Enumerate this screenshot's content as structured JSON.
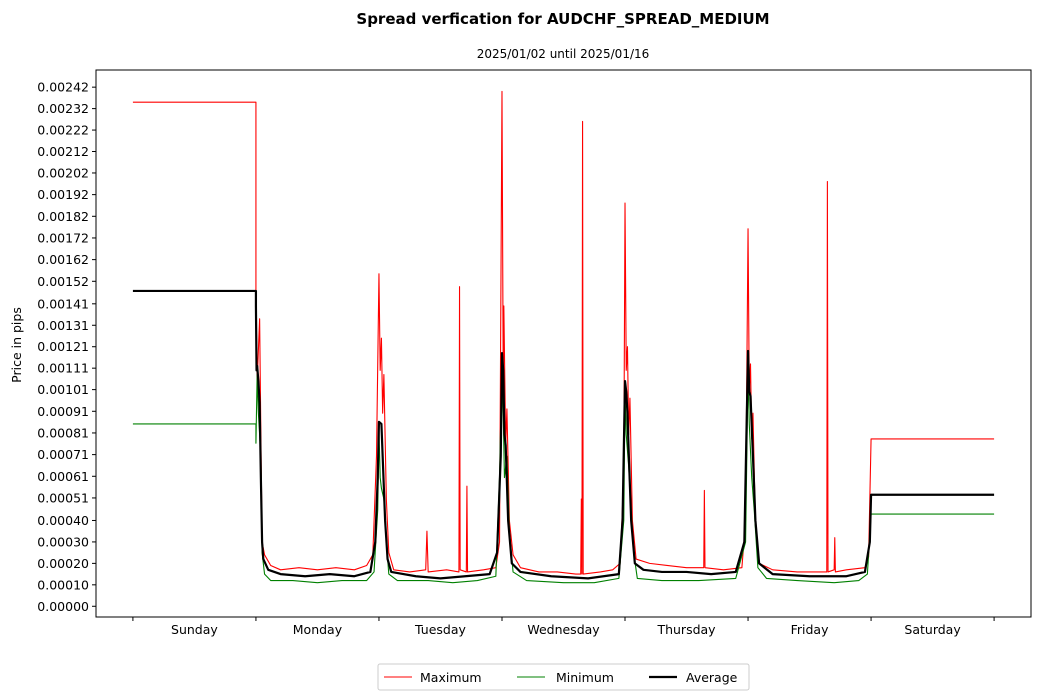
{
  "chart_data": {
    "type": "line",
    "title": "Spread verfication for AUDCHF_SPREAD_MEDIUM",
    "subtitle": "2025/01/02 until 2025/01/16",
    "xlabel": "",
    "ylabel": "Price in pips",
    "ylim": [
      -5e-05,
      0.0025
    ],
    "xlim": [
      -0.3,
      7.3
    ],
    "yticks": [
      "0.00000",
      "0.00010",
      "0.00020",
      "0.00030",
      "0.00040",
      "0.00051",
      "0.00061",
      "0.00071",
      "0.00081",
      "0.00091",
      "0.00101",
      "0.00111",
      "0.00121",
      "0.00131",
      "0.00141",
      "0.00152",
      "0.00162",
      "0.00172",
      "0.00182",
      "0.00192",
      "0.00202",
      "0.00212",
      "0.00222",
      "0.00232",
      "0.00242"
    ],
    "ytick_values": [
      0.0,
      0.0001,
      0.0002,
      0.0003,
      0.0004,
      0.000505,
      0.000606,
      0.000707,
      0.000808,
      0.000909,
      0.00101,
      0.00111,
      0.00121,
      0.00131,
      0.00141,
      0.001515,
      0.001616,
      0.001717,
      0.001818,
      0.001919,
      0.00202,
      0.00212,
      0.00222,
      0.00232,
      0.00242
    ],
    "categories": [
      "Sunday",
      "Monday",
      "Tuesday",
      "Wednesday",
      "Thursday",
      "Friday",
      "Saturday"
    ],
    "legend_position": "bottom-center",
    "grid": false,
    "series": [
      {
        "name": "Maximum",
        "color": "#ff0000",
        "stroke": 1.1,
        "points": [
          [
            0,
            0.00235
          ],
          [
            1.0,
            0.00235
          ],
          [
            1.0,
            0.00145
          ],
          [
            1.01,
            0.00105
          ],
          [
            1.03,
            0.00134
          ],
          [
            1.04,
            0.0008
          ],
          [
            1.05,
            0.0003
          ],
          [
            1.07,
            0.00024
          ],
          [
            1.12,
            0.00019
          ],
          [
            1.2,
            0.00017
          ],
          [
            1.35,
            0.00018
          ],
          [
            1.5,
            0.00017
          ],
          [
            1.65,
            0.00018
          ],
          [
            1.8,
            0.00017
          ],
          [
            1.9,
            0.00019
          ],
          [
            1.95,
            0.00024
          ],
          [
            1.98,
            0.0007
          ],
          [
            2.0,
            0.00155
          ],
          [
            2.01,
            0.0011
          ],
          [
            2.02,
            0.00125
          ],
          [
            2.03,
            0.0009
          ],
          [
            2.04,
            0.00108
          ],
          [
            2.06,
            0.0005
          ],
          [
            2.08,
            0.00025
          ],
          [
            2.12,
            0.00017
          ],
          [
            2.25,
            0.00016
          ],
          [
            2.38,
            0.00017
          ],
          [
            2.39,
            0.00035
          ],
          [
            2.4,
            0.00016
          ],
          [
            2.55,
            0.00017
          ],
          [
            2.65,
            0.00016
          ],
          [
            2.655,
            0.00149
          ],
          [
            2.66,
            0.00017
          ],
          [
            2.71,
            0.00016
          ],
          [
            2.715,
            0.00056
          ],
          [
            2.72,
            0.00016
          ],
          [
            2.85,
            0.00017
          ],
          [
            2.95,
            0.00018
          ],
          [
            2.98,
            0.0003
          ],
          [
            3.0,
            0.0024
          ],
          [
            3.01,
            0.00105
          ],
          [
            3.015,
            0.0014
          ],
          [
            3.03,
            0.00075
          ],
          [
            3.04,
            0.00092
          ],
          [
            3.06,
            0.0004
          ],
          [
            3.09,
            0.00024
          ],
          [
            3.15,
            0.00018
          ],
          [
            3.3,
            0.00016
          ],
          [
            3.45,
            0.00016
          ],
          [
            3.6,
            0.00015
          ],
          [
            3.64,
            0.00015
          ],
          [
            3.645,
            0.0005
          ],
          [
            3.65,
            0.00015
          ],
          [
            3.655,
            0.00226
          ],
          [
            3.66,
            0.00015
          ],
          [
            3.8,
            0.00016
          ],
          [
            3.9,
            0.00017
          ],
          [
            3.96,
            0.0002
          ],
          [
            3.99,
            0.0006
          ],
          [
            4.0,
            0.00188
          ],
          [
            4.01,
            0.0011
          ],
          [
            4.02,
            0.00121
          ],
          [
            4.03,
            0.0008
          ],
          [
            4.04,
            0.00097
          ],
          [
            4.06,
            0.0004
          ],
          [
            4.09,
            0.00022
          ],
          [
            4.2,
            0.0002
          ],
          [
            4.35,
            0.00019
          ],
          [
            4.5,
            0.00018
          ],
          [
            4.64,
            0.00018
          ],
          [
            4.645,
            0.00054
          ],
          [
            4.65,
            0.00018
          ],
          [
            4.8,
            0.00017
          ],
          [
            4.95,
            0.00018
          ],
          [
            4.98,
            0.0004
          ],
          [
            5.0,
            0.00176
          ],
          [
            5.01,
            0.001
          ],
          [
            5.02,
            0.00113
          ],
          [
            5.03,
            0.00078
          ],
          [
            5.04,
            0.0009
          ],
          [
            5.06,
            0.00038
          ],
          [
            5.09,
            0.0002
          ],
          [
            5.2,
            0.00017
          ],
          [
            5.4,
            0.00016
          ],
          [
            5.6,
            0.00016
          ],
          [
            5.64,
            0.00016
          ],
          [
            5.645,
            0.00198
          ],
          [
            5.65,
            0.00016
          ],
          [
            5.7,
            0.00017
          ],
          [
            5.705,
            0.00032
          ],
          [
            5.71,
            0.00016
          ],
          [
            5.8,
            0.00017
          ],
          [
            5.95,
            0.00018
          ],
          [
            5.98,
            0.00023
          ],
          [
            6.0,
            0.00078
          ],
          [
            7.0,
            0.00078
          ]
        ]
      },
      {
        "name": "Minimum",
        "color": "#008000",
        "stroke": 1.1,
        "points": [
          [
            0,
            0.00085
          ],
          [
            1.0,
            0.00085
          ],
          [
            1.0,
            0.00076
          ],
          [
            1.01,
            0.00108
          ],
          [
            1.02,
            0.0009
          ],
          [
            1.04,
            0.0007
          ],
          [
            1.05,
            0.00025
          ],
          [
            1.07,
            0.00015
          ],
          [
            1.12,
            0.00012
          ],
          [
            1.3,
            0.00012
          ],
          [
            1.5,
            0.00011
          ],
          [
            1.7,
            0.00012
          ],
          [
            1.9,
            0.00012
          ],
          [
            1.96,
            0.00016
          ],
          [
            1.99,
            0.00045
          ],
          [
            2.0,
            0.00082
          ],
          [
            2.01,
            0.0006
          ],
          [
            2.02,
            0.00055
          ],
          [
            2.04,
            0.0005
          ],
          [
            2.06,
            0.0003
          ],
          [
            2.08,
            0.00015
          ],
          [
            2.15,
            0.00012
          ],
          [
            2.4,
            0.00012
          ],
          [
            2.6,
            0.00011
          ],
          [
            2.8,
            0.00012
          ],
          [
            2.95,
            0.00014
          ],
          [
            2.98,
            0.0006
          ],
          [
            3.0,
            0.00115
          ],
          [
            3.01,
            0.0009
          ],
          [
            3.02,
            0.0006
          ],
          [
            3.04,
            0.0007
          ],
          [
            3.06,
            0.00035
          ],
          [
            3.09,
            0.00016
          ],
          [
            3.2,
            0.00012
          ],
          [
            3.5,
            0.00011
          ],
          [
            3.75,
            0.00011
          ],
          [
            3.95,
            0.00013
          ],
          [
            3.99,
            0.0004
          ],
          [
            4.0,
            0.001
          ],
          [
            4.01,
            0.0008
          ],
          [
            4.03,
            0.00065
          ],
          [
            4.05,
            0.00045
          ],
          [
            4.07,
            0.00025
          ],
          [
            4.1,
            0.00013
          ],
          [
            4.3,
            0.00012
          ],
          [
            4.6,
            0.00012
          ],
          [
            4.9,
            0.00013
          ],
          [
            4.98,
            0.0003
          ],
          [
            5.0,
            0.0011
          ],
          [
            5.01,
            0.00085
          ],
          [
            5.03,
            0.0006
          ],
          [
            5.05,
            0.00045
          ],
          [
            5.08,
            0.00018
          ],
          [
            5.15,
            0.00013
          ],
          [
            5.4,
            0.00012
          ],
          [
            5.7,
            0.00011
          ],
          [
            5.9,
            0.00012
          ],
          [
            5.97,
            0.00015
          ],
          [
            6.0,
            0.00043
          ],
          [
            7.0,
            0.00043
          ]
        ]
      },
      {
        "name": "Average",
        "color": "#000000",
        "stroke": 2.2,
        "points": [
          [
            0,
            0.00147
          ],
          [
            1.0,
            0.00147
          ],
          [
            1.0,
            0.0014
          ],
          [
            1.005,
            0.0011
          ],
          [
            1.01,
            0.00112
          ],
          [
            1.02,
            0.00105
          ],
          [
            1.03,
            0.00095
          ],
          [
            1.04,
            0.0006
          ],
          [
            1.05,
            0.0003
          ],
          [
            1.06,
            0.00022
          ],
          [
            1.1,
            0.00017
          ],
          [
            1.2,
            0.00015
          ],
          [
            1.4,
            0.00014
          ],
          [
            1.6,
            0.00015
          ],
          [
            1.8,
            0.00014
          ],
          [
            1.93,
            0.00016
          ],
          [
            1.97,
            0.0003
          ],
          [
            1.99,
            0.0006
          ],
          [
            2.0,
            0.00086
          ],
          [
            2.02,
            0.00085
          ],
          [
            2.03,
            0.0007
          ],
          [
            2.05,
            0.0004
          ],
          [
            2.07,
            0.00022
          ],
          [
            2.1,
            0.00016
          ],
          [
            2.3,
            0.00014
          ],
          [
            2.5,
            0.00013
          ],
          [
            2.7,
            0.00014
          ],
          [
            2.9,
            0.00015
          ],
          [
            2.96,
            0.00025
          ],
          [
            2.99,
            0.0007
          ],
          [
            3.0,
            0.00118
          ],
          [
            3.01,
            0.0011
          ],
          [
            3.02,
            0.0008
          ],
          [
            3.03,
            0.00075
          ],
          [
            3.05,
            0.0004
          ],
          [
            3.08,
            0.0002
          ],
          [
            3.15,
            0.00016
          ],
          [
            3.4,
            0.00014
          ],
          [
            3.7,
            0.00013
          ],
          [
            3.95,
            0.00015
          ],
          [
            3.98,
            0.0004
          ],
          [
            4.0,
            0.00105
          ],
          [
            4.01,
            0.001
          ],
          [
            4.02,
            0.0009
          ],
          [
            4.03,
            0.00072
          ],
          [
            4.05,
            0.0004
          ],
          [
            4.08,
            0.0002
          ],
          [
            4.15,
            0.00017
          ],
          [
            4.3,
            0.00016
          ],
          [
            4.5,
            0.00016
          ],
          [
            4.7,
            0.00015
          ],
          [
            4.9,
            0.00016
          ],
          [
            4.97,
            0.0003
          ],
          [
            5.0,
            0.00119
          ],
          [
            5.01,
            0.001
          ],
          [
            5.02,
            0.00098
          ],
          [
            5.04,
            0.0007
          ],
          [
            5.06,
            0.0004
          ],
          [
            5.09,
            0.0002
          ],
          [
            5.2,
            0.00015
          ],
          [
            5.5,
            0.00014
          ],
          [
            5.8,
            0.00014
          ],
          [
            5.95,
            0.00016
          ],
          [
            5.99,
            0.0003
          ],
          [
            6.0,
            0.00052
          ],
          [
            7.0,
            0.00052
          ]
        ]
      }
    ]
  }
}
